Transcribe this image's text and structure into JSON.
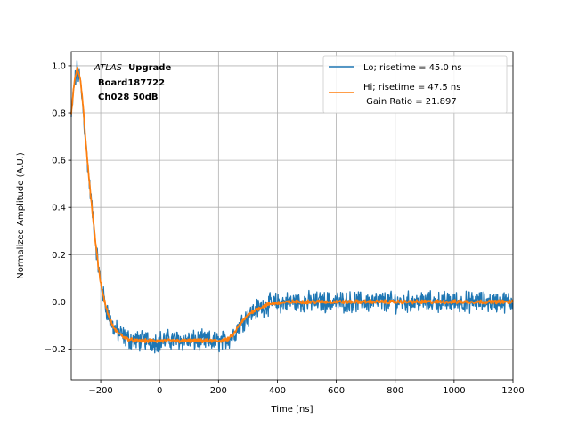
{
  "chart_data": {
    "type": "line",
    "xlabel": "Time [ns]",
    "ylabel": "Normalized Amplitude (A.U.)",
    "xlim": [
      -300,
      1200
    ],
    "ylim": [
      -0.33,
      1.06
    ],
    "xticks": [
      -200,
      0,
      200,
      400,
      600,
      800,
      1000,
      1200
    ],
    "yticks": [
      -0.2,
      0.0,
      0.2,
      0.4,
      0.6,
      0.8,
      1.0
    ],
    "xtick_labels": [
      "−200",
      "0",
      "200",
      "400",
      "600",
      "800",
      "1000",
      "1200"
    ],
    "ytick_labels": [
      "−0.2",
      "0.0",
      "0.2",
      "0.4",
      "0.6",
      "0.8",
      "1.0"
    ],
    "grid": true,
    "legend_position": "top-right",
    "annotation": {
      "italic": "ATLAS",
      "bold": "Upgrade",
      "line2": "Board187722",
      "line3": "Ch028 50dB"
    },
    "series": [
      {
        "name": "Lo; risetime = 45.0 ns",
        "color": "#1f77b4",
        "noise": 0.035,
        "x": [
          -300,
          -290,
          -280,
          -270,
          -260,
          -250,
          -240,
          -230,
          -220,
          -210,
          -200,
          -190,
          -180,
          -170,
          -160,
          -150,
          -140,
          -120,
          -100,
          -80,
          -60,
          -40,
          -20,
          0,
          50,
          100,
          150,
          200,
          230,
          250,
          270,
          290,
          310,
          330,
          350,
          370,
          400,
          450,
          500,
          600,
          700,
          800,
          900,
          1000,
          1100,
          1200
        ],
        "y": [
          0.78,
          0.92,
          0.98,
          0.94,
          0.82,
          0.66,
          0.52,
          0.4,
          0.28,
          0.17,
          0.08,
          0.02,
          -0.03,
          -0.07,
          -0.1,
          -0.12,
          -0.13,
          -0.15,
          -0.16,
          -0.165,
          -0.165,
          -0.16,
          -0.17,
          -0.165,
          -0.16,
          -0.165,
          -0.165,
          -0.17,
          -0.16,
          -0.14,
          -0.1,
          -0.07,
          -0.05,
          -0.03,
          -0.02,
          -0.01,
          -0.005,
          0.0,
          0.0,
          0.0,
          0.0,
          0.0,
          0.0,
          0.0,
          0.0,
          0.0
        ]
      },
      {
        "name": "Hi; risetime = 47.5 ns",
        "name_line2": " Gain Ratio = 21.897",
        "color": "#ff7f0e",
        "noise": 0.006,
        "x": [
          -300,
          -290,
          -280,
          -270,
          -260,
          -250,
          -240,
          -230,
          -220,
          -210,
          -200,
          -190,
          -180,
          -170,
          -160,
          -150,
          -140,
          -120,
          -100,
          -80,
          -60,
          -40,
          -20,
          0,
          50,
          100,
          150,
          200,
          230,
          250,
          270,
          290,
          310,
          330,
          350,
          370,
          400,
          450,
          500,
          600,
          700,
          800,
          900,
          1000,
          1100,
          1200
        ],
        "y": [
          0.8,
          0.93,
          0.99,
          0.95,
          0.83,
          0.67,
          0.53,
          0.4,
          0.28,
          0.17,
          0.08,
          0.02,
          -0.03,
          -0.07,
          -0.1,
          -0.12,
          -0.13,
          -0.15,
          -0.16,
          -0.165,
          -0.165,
          -0.165,
          -0.165,
          -0.165,
          -0.165,
          -0.165,
          -0.165,
          -0.165,
          -0.16,
          -0.14,
          -0.1,
          -0.07,
          -0.045,
          -0.03,
          -0.02,
          -0.01,
          -0.005,
          0.0,
          0.0,
          0.0,
          0.0,
          0.0,
          0.0,
          0.0,
          0.0,
          0.0
        ]
      }
    ]
  }
}
